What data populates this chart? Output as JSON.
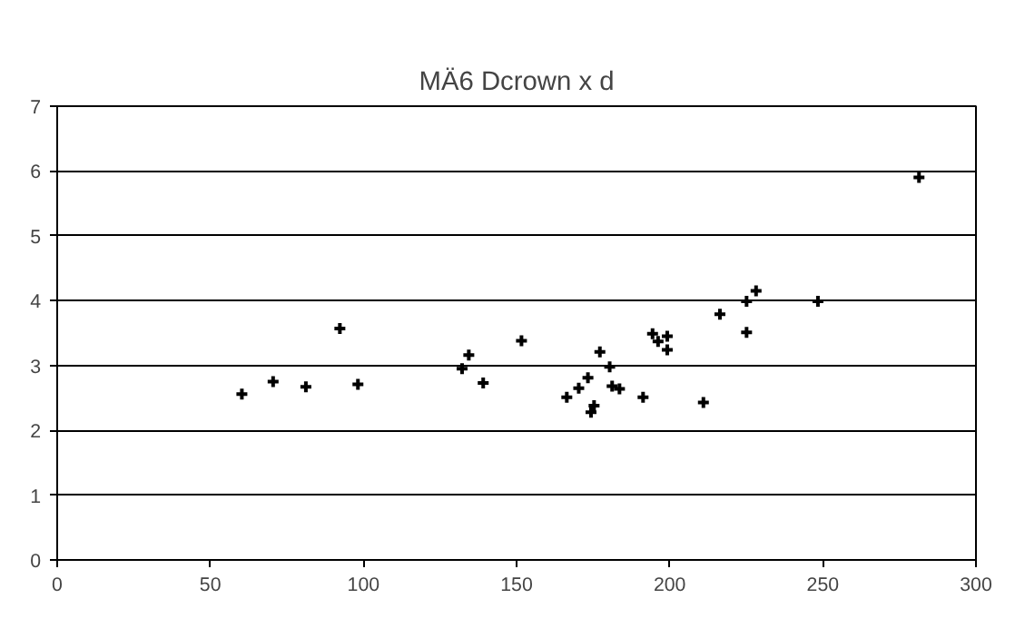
{
  "chart_data": {
    "type": "scatter",
    "title": "MÄ6 Dcrown x d",
    "x": [
      60.3,
      70.5,
      81.2,
      92.3,
      98.2,
      132.2,
      134.4,
      139.1,
      151.6,
      166.4,
      170.3,
      173.3,
      175.3,
      174.3,
      177.2,
      180.4,
      181.2,
      183.6,
      191.3,
      194.4,
      196.2,
      199.2,
      199.2,
      211.0,
      216.4,
      225.1,
      225.1,
      228.2,
      248.4,
      281.4
    ],
    "values": [
      2.56,
      2.75,
      2.67,
      3.57,
      2.71,
      2.95,
      3.16,
      2.73,
      3.38,
      2.51,
      2.65,
      2.81,
      2.38,
      2.28,
      3.21,
      2.98,
      2.68,
      2.64,
      2.51,
      3.49,
      3.37,
      3.45,
      3.24,
      2.43,
      3.79,
      3.99,
      3.51,
      4.15,
      3.99,
      5.9
    ],
    "color": "#000000",
    "marker": "cross",
    "xlim": [
      0,
      300
    ],
    "xticks": [
      0,
      50,
      100,
      150,
      200,
      250,
      300
    ],
    "ylim": [
      0,
      7
    ],
    "yticks": [
      0,
      1,
      2,
      3,
      4,
      5,
      6,
      7
    ],
    "grid": "y"
  }
}
